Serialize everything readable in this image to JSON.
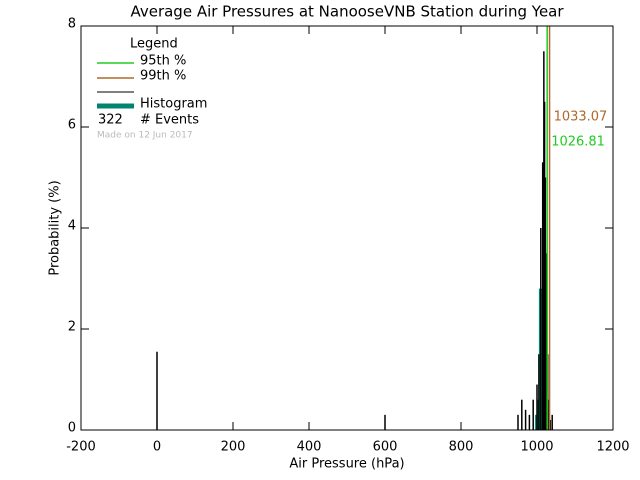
{
  "chart_data": {
    "type": "histogram",
    "title": "Average Air Pressures at NanooseVNB Station during Year",
    "x_label": "Air Pressure (hPa)",
    "y_label": "Probability (%)",
    "xlim": [
      -200,
      1200
    ],
    "xticks": [
      -200,
      0,
      200,
      400,
      600,
      800,
      1000,
      1200
    ],
    "ylim": [
      0,
      8
    ],
    "yticks": [
      0,
      2,
      4,
      6,
      8
    ],
    "spikes": {
      "color": "#000000",
      "x": [
        0,
        600,
        950,
        960,
        970,
        980,
        990,
        1000,
        1005,
        1010,
        1015,
        1018,
        1020,
        1022,
        1025,
        1028,
        1032,
        1035,
        1040
      ],
      "values": [
        1.55,
        0.3,
        0.3,
        0.6,
        0.4,
        0.3,
        0.6,
        0.9,
        1.5,
        4.0,
        5.3,
        7.5,
        6.5,
        5.0,
        3.5,
        1.5,
        0.6,
        0.2,
        0.3
      ]
    },
    "histogram": {
      "name": "Histogram",
      "color": "#008470",
      "bins": [
        995,
        1000,
        1005,
        1010,
        1015,
        1020,
        1025,
        1030
      ],
      "counts": [
        0.3,
        0.6,
        2.8,
        2.8,
        2.8,
        1.5,
        0.4
      ]
    },
    "percentiles": [
      {
        "name": "95th %",
        "value": 1026.81,
        "color": "#22cc22"
      },
      {
        "name": "99th %",
        "value": 1033.07,
        "color": "#b0682a"
      }
    ],
    "legend_title": "Legend",
    "events": 322,
    "events_label": "# Events",
    "note": "Made on 12 Jun 2017"
  }
}
